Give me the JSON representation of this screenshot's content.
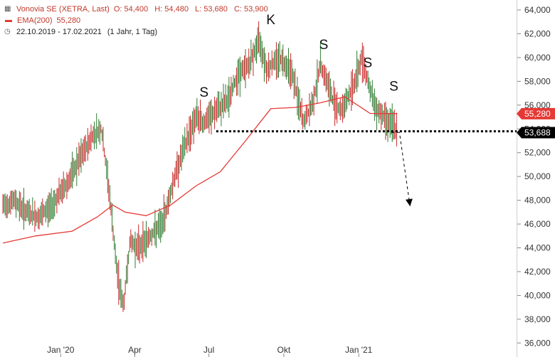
{
  "legend": {
    "title": "Vonovia SE (XETRA, Last)",
    "open": "O: 54,400",
    "high": "H: 54,480",
    "low": "L: 53,680",
    "close": "C: 53,900",
    "ema_label": "EMA(200)",
    "ema_value": "55,280",
    "range": "22.10.2019 - 17.02.2021",
    "range_detail": "(1 Jahr, 1 Tag)"
  },
  "colors": {
    "candle": "#2e7d32",
    "candle_down": "#c62828",
    "ema": "#e53935",
    "ema_badge": "#e53935",
    "price_badge": "#000000",
    "support_line": "#000000"
  },
  "chart_data": {
    "type": "line",
    "title": "",
    "ylim": [
      36000,
      64500
    ],
    "y_ticks": [
      {
        "value": 64000,
        "label": "64,000"
      },
      {
        "value": 62000,
        "label": "62,000"
      },
      {
        "value": 60000,
        "label": "60,000"
      },
      {
        "value": 58000,
        "label": "58,000"
      },
      {
        "value": 56000,
        "label": "56,000"
      },
      {
        "value": 54000,
        "label": "54,000"
      },
      {
        "value": 52000,
        "label": "52,000"
      },
      {
        "value": 50000,
        "label": "50,000"
      },
      {
        "value": 48000,
        "label": "48,000"
      },
      {
        "value": 46000,
        "label": "46,000"
      },
      {
        "value": 44000,
        "label": "44,000"
      },
      {
        "value": 42000,
        "label": "42,000"
      },
      {
        "value": 40000,
        "label": "40,000"
      },
      {
        "value": 38000,
        "label": "38,000"
      },
      {
        "value": 36000,
        "label": "36,000"
      }
    ],
    "x_ticks": [
      {
        "date": "2020-01-01",
        "label": "Jan '20"
      },
      {
        "date": "2020-04-01",
        "label": "Apr"
      },
      {
        "date": "2020-07-01",
        "label": "Jul"
      },
      {
        "date": "2020-10-01",
        "label": "Okt"
      },
      {
        "date": "2021-01-01",
        "label": "Jan '21"
      }
    ],
    "x_range": [
      "2019-10-22",
      "2021-02-17"
    ],
    "price_series": {
      "name": "Vonovia SE",
      "x": [
        "2019-10-22",
        "2019-11-05",
        "2019-11-20",
        "2019-12-05",
        "2019-12-20",
        "2020-01-10",
        "2020-01-25",
        "2020-02-10",
        "2020-02-20",
        "2020-03-01",
        "2020-03-10",
        "2020-03-18",
        "2020-03-26",
        "2020-04-05",
        "2020-04-20",
        "2020-05-05",
        "2020-05-20",
        "2020-06-01",
        "2020-06-15",
        "2020-06-25",
        "2020-07-10",
        "2020-07-25",
        "2020-08-05",
        "2020-08-20",
        "2020-09-01",
        "2020-09-10",
        "2020-09-25",
        "2020-10-10",
        "2020-10-25",
        "2020-11-05",
        "2020-11-15",
        "2020-11-30",
        "2020-12-10",
        "2020-12-25",
        "2021-01-05",
        "2021-01-20",
        "2021-02-01",
        "2021-02-10",
        "2021-02-17"
      ],
      "values": [
        47500,
        48000,
        47000,
        46500,
        47500,
        49500,
        51500,
        53500,
        54000,
        48500,
        42000,
        39000,
        44500,
        44000,
        45000,
        46000,
        50000,
        52500,
        55000,
        54500,
        55500,
        56500,
        58500,
        59500,
        61500,
        59000,
        60000,
        59000,
        54500,
        56000,
        59500,
        56500,
        55500,
        57500,
        60000,
        56000,
        55000,
        54400,
        53900
      ]
    },
    "ema_series": {
      "name": "EMA(200)",
      "x": [
        "2019-10-22",
        "2019-12-01",
        "2020-01-15",
        "2020-02-15",
        "2020-03-05",
        "2020-03-20",
        "2020-04-15",
        "2020-05-15",
        "2020-06-15",
        "2020-07-15",
        "2020-08-15",
        "2020-09-15",
        "2020-10-15",
        "2020-11-15",
        "2020-12-15",
        "2021-01-15",
        "2021-02-17"
      ],
      "values": [
        44400,
        45000,
        45400,
        46600,
        47600,
        47000,
        46700,
        47600,
        49200,
        50400,
        53000,
        55700,
        55800,
        56200,
        56700,
        55300,
        55280
      ]
    },
    "price_badge": {
      "value": 53688,
      "label": "53,688"
    },
    "ema_badge": {
      "value": 55280,
      "label": "55,280"
    },
    "support_line": {
      "value": 53800,
      "from": "2020-07-10",
      "to": "2021-02-17"
    },
    "projection": {
      "x": [
        "2021-02-10",
        "2021-02-20",
        "2021-03-05"
      ],
      "values": [
        53700,
        53700,
        47500
      ]
    },
    "annotations": [
      {
        "text": "S",
        "x": "2020-06-25",
        "y": 56700
      },
      {
        "text": "K",
        "x": "2020-09-15",
        "y": 62800
      },
      {
        "text": "S",
        "x": "2020-11-19",
        "y": 60700
      },
      {
        "text": "S",
        "x": "2021-01-12",
        "y": 59200
      },
      {
        "text": "S",
        "x": "2021-02-13",
        "y": 57200
      }
    ]
  }
}
